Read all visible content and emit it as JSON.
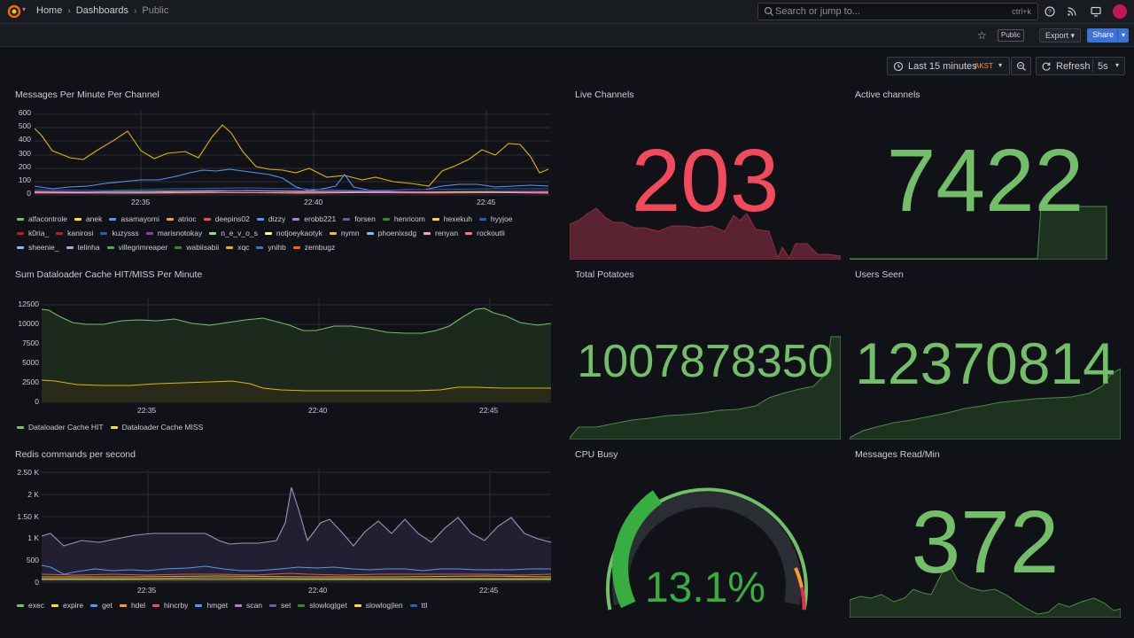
{
  "topbar": {
    "breadcrumb": [
      "Home",
      "Dashboards",
      "Public"
    ],
    "search_placeholder": "Search or jump to...",
    "search_shortcut": "ctrl+k"
  },
  "subbar": {
    "public_badge": "Public",
    "export_label": "Export",
    "share_label": "Share"
  },
  "timepicker": {
    "label": "Last 15 minutes",
    "timezone": "AKST",
    "refresh_label": "Refresh",
    "interval": "5s"
  },
  "colors": {
    "accent_blue": "#3d71d9",
    "stat_green": "#73bf69",
    "stat_red": "#f2495c",
    "tz_orange": "#ff9830"
  },
  "panels": {
    "messages": {
      "title": "Messages Per Minute Per Channel",
      "yticks": [
        "600",
        "500",
        "400",
        "300",
        "200",
        "100",
        "0"
      ],
      "xticks": [
        "22:35",
        "22:40",
        "22:45"
      ],
      "legend": [
        {
          "name": "alfacontrole",
          "color": "#73bf69"
        },
        {
          "name": "anek",
          "color": "#fade2a"
        },
        {
          "name": "asamayomi",
          "color": "#5794f2"
        },
        {
          "name": "atrioc",
          "color": "#ff9830"
        },
        {
          "name": "deepins02",
          "color": "#f2495c"
        },
        {
          "name": "dizzy",
          "color": "#5794f2"
        },
        {
          "name": "erobb221",
          "color": "#b877d9"
        },
        {
          "name": "forsen",
          "color": "#705da0"
        },
        {
          "name": "henricom",
          "color": "#37872d"
        },
        {
          "name": "hexekuh",
          "color": "#fade2a"
        },
        {
          "name": "hyyjoe",
          "color": "#1f60c4"
        },
        {
          "name": "k0ria_",
          "color": "#c4162a"
        },
        {
          "name": "kanirosi",
          "color": "#c4162a"
        },
        {
          "name": "kuzysss",
          "color": "#1f60c4"
        },
        {
          "name": "marisnotokay",
          "color": "#8f3bb8"
        },
        {
          "name": "n_e_v_o_s",
          "color": "#96d98d"
        },
        {
          "name": "notjoeykaotyk",
          "color": "#fff899"
        },
        {
          "name": "nymn",
          "color": "#ffb357"
        },
        {
          "name": "phoenixsdg",
          "color": "#8ab8ff"
        },
        {
          "name": "renyan",
          "color": "#ffa6b0"
        },
        {
          "name": "rockoutli",
          "color": "#ff7383"
        },
        {
          "name": "sheenie_",
          "color": "#8ab8ff"
        },
        {
          "name": "telinha",
          "color": "#ca95e5"
        },
        {
          "name": "villegrimreaper",
          "color": "#56a64b"
        },
        {
          "name": "wabiisabii",
          "color": "#37872d"
        },
        {
          "name": "xqc",
          "color": "#e0b400"
        },
        {
          "name": "ynihb",
          "color": "#3274d9"
        },
        {
          "name": "zembugz",
          "color": "#fa6400"
        }
      ]
    },
    "dataloader": {
      "title": "Sum Dataloader Cache HIT/MISS Per Minute",
      "yticks": [
        "12500",
        "10000",
        "7500",
        "5000",
        "2500",
        "0"
      ],
      "xticks": [
        "22:35",
        "22:40",
        "22:45"
      ],
      "legend": [
        {
          "name": "Dataloader Cache HIT",
          "color": "#73bf69"
        },
        {
          "name": "Dataloader Cache MISS",
          "color": "#fade2a"
        }
      ]
    },
    "redis": {
      "title": "Redis commands per second",
      "yticks": [
        "2.50 K",
        "2 K",
        "1.50 K",
        "1 K",
        "500",
        "0"
      ],
      "xticks": [
        "22:35",
        "22:40",
        "22:45"
      ],
      "legend": [
        {
          "name": "exec",
          "color": "#73bf69"
        },
        {
          "name": "expire",
          "color": "#fade2a"
        },
        {
          "name": "get",
          "color": "#5794f2"
        },
        {
          "name": "hdel",
          "color": "#ff9830"
        },
        {
          "name": "hincrby",
          "color": "#f2495c"
        },
        {
          "name": "hmget",
          "color": "#5794f2"
        },
        {
          "name": "scan",
          "color": "#b877d9"
        },
        {
          "name": "set",
          "color": "#705da0"
        },
        {
          "name": "slowlog|get",
          "color": "#37872d"
        },
        {
          "name": "slowlog|len",
          "color": "#fade2a"
        },
        {
          "name": "ttl",
          "color": "#1f60c4"
        }
      ]
    },
    "live_channels": {
      "title": "Live Channels",
      "value": "203"
    },
    "active_channels": {
      "title": "Active channels",
      "value": "7422"
    },
    "total_potatoes": {
      "title": "Total Potatoes",
      "value": "1007878350"
    },
    "users_seen": {
      "title": "Users Seen",
      "value": "12370814"
    },
    "cpu_busy": {
      "title": "CPU Busy",
      "value": "13.1%",
      "percent": 13.1
    },
    "messages_read": {
      "title": "Messages Read/Min",
      "value": "372"
    }
  }
}
